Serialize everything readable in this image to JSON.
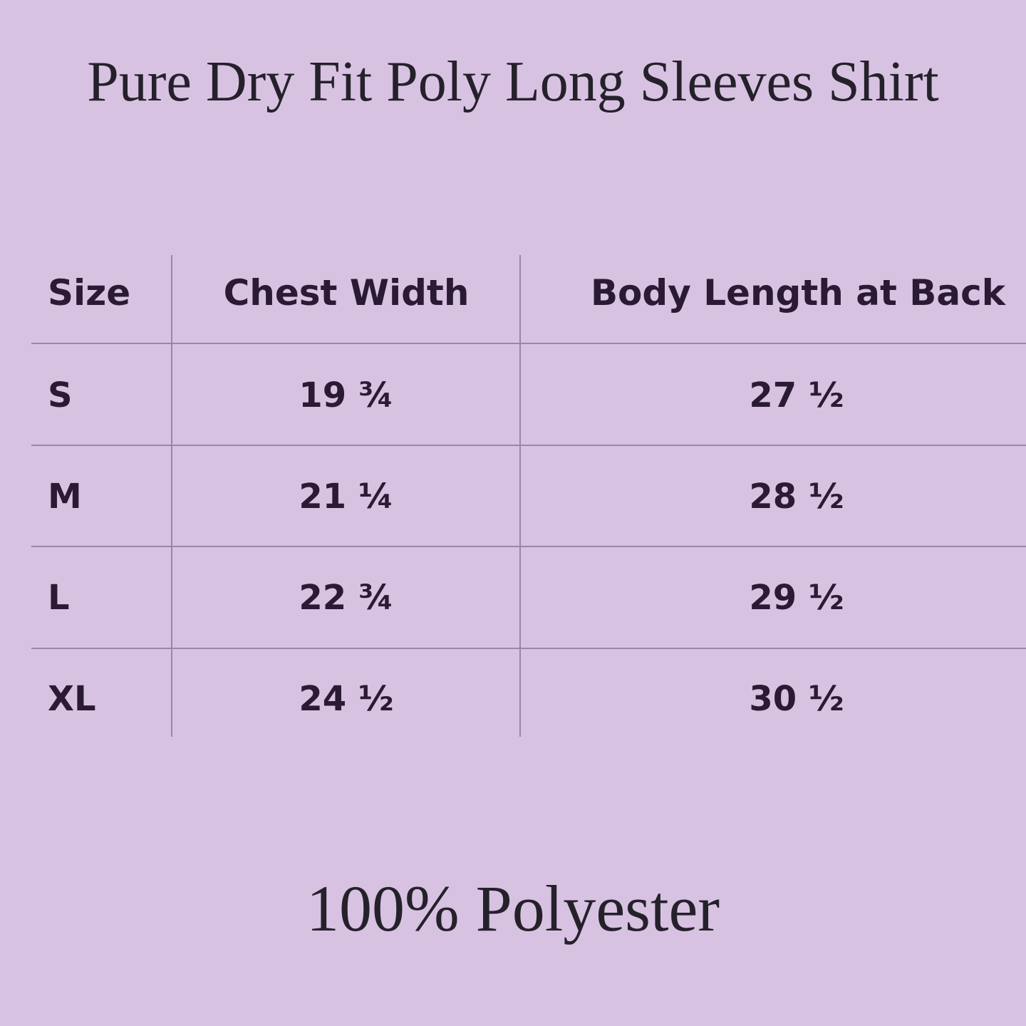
{
  "title": "Pure Dry Fit Poly Long Sleeves Shirt",
  "table": {
    "headers": [
      "Size",
      "Chest Width",
      "Body Length at Back"
    ],
    "rows": [
      [
        "S",
        "19 ¾",
        "27 ½"
      ],
      [
        "M",
        "21 ¼",
        "28 ½"
      ],
      [
        "L",
        "22 ¾",
        "29 ½"
      ],
      [
        "XL",
        "24 ½",
        "30 ½"
      ]
    ]
  },
  "footer": "100% Polyester",
  "colors": {
    "background": "#D8C2E2",
    "text": "#2a1a33",
    "grid": "#9c86a8"
  }
}
